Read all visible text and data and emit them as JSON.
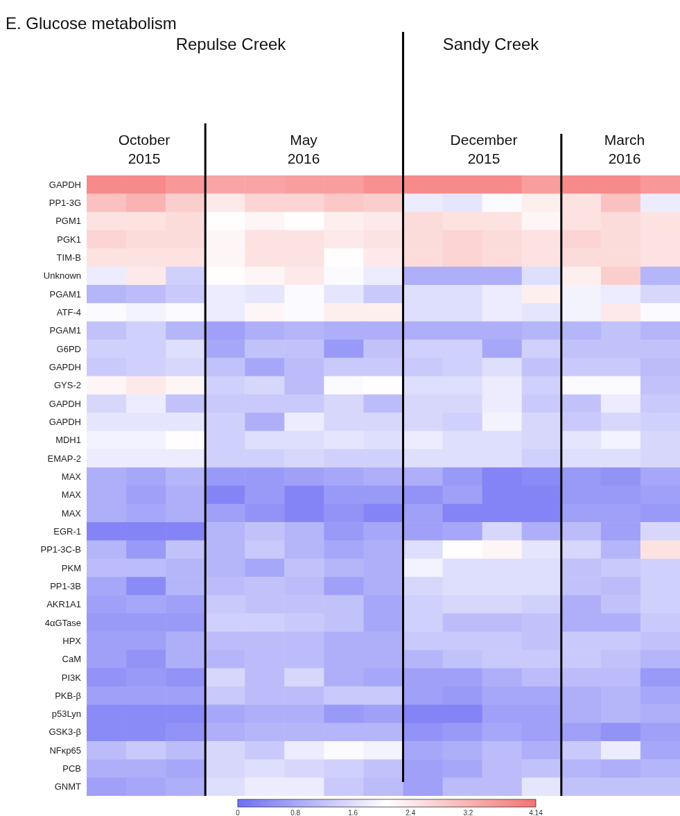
{
  "chart_data": {
    "type": "heatmap",
    "title": "E. Glucose metabolism",
    "annotations": [
      "Repulse Creek",
      "Sandy Creek",
      "October 2015",
      "May 2016",
      "December 2015",
      "March 2016"
    ],
    "categories": [
      null,
      null,
      null,
      null,
      null,
      null,
      null,
      null,
      null,
      null,
      null,
      null,
      null,
      null,
      null
    ],
    "y_categories": [
      "GAPDH",
      "PP1-3G",
      "PGM1",
      "PGK1",
      "TIM-B",
      "Unknown",
      "PGAM1",
      "ATF-4",
      "PGAM1",
      "G6PD",
      "GAPDH",
      "GYS-2",
      "GAPDH",
      "GAPDH",
      "MDH1",
      "EMAP-2",
      "MAX",
      "MAX",
      "MAX",
      "EGR-1",
      "PP1-3C-B",
      "PKM",
      "PP1-3B",
      "AKR1A1",
      "4αGTase",
      "HPX",
      "CaM",
      "PI3K",
      "PKB-β",
      "p53Lyn",
      "GSK3-β",
      "NFκp65",
      "PCB",
      "GNMT"
    ],
    "cells": [
      [
        3.8,
        3.8,
        3.6,
        3.4,
        3.4,
        3.5,
        3.5,
        3.7,
        3.8,
        3.8,
        3.8,
        3.5,
        3.8,
        3.8,
        3.6
      ],
      [
        3.0,
        3.2,
        2.8,
        2.4,
        2.7,
        2.7,
        2.9,
        2.8,
        1.8,
        1.7,
        2.0,
        2.3,
        2.5,
        3.0,
        1.8
      ],
      [
        2.5,
        2.5,
        2.6,
        2.1,
        2.2,
        2.1,
        2.3,
        2.4,
        2.6,
        2.5,
        2.5,
        2.2,
        2.5,
        2.6,
        2.5
      ],
      [
        2.7,
        2.6,
        2.6,
        2.2,
        2.5,
        2.5,
        2.4,
        2.5,
        2.6,
        2.7,
        2.6,
        2.5,
        2.7,
        2.6,
        2.5
      ],
      [
        2.5,
        2.5,
        2.5,
        2.2,
        2.5,
        2.5,
        2.1,
        2.4,
        2.6,
        2.7,
        2.6,
        2.5,
        2.6,
        2.6,
        2.5
      ],
      [
        1.8,
        2.4,
        1.4,
        2.1,
        2.2,
        2.4,
        2.0,
        1.8,
        0.9,
        0.9,
        0.9,
        1.6,
        2.3,
        2.8,
        1.0
      ],
      [
        1.0,
        1.1,
        1.3,
        1.8,
        1.7,
        2.0,
        1.7,
        1.3,
        1.6,
        1.6,
        1.8,
        2.3,
        1.9,
        1.8,
        1.5
      ],
      [
        2.0,
        1.9,
        2.0,
        1.8,
        2.2,
        2.0,
        2.3,
        2.3,
        1.6,
        1.6,
        1.8,
        1.7,
        1.9,
        2.4,
        2.0
      ],
      [
        1.2,
        1.4,
        1.0,
        0.7,
        0.9,
        1.0,
        0.9,
        0.9,
        0.9,
        0.9,
        0.9,
        1.0,
        1.0,
        1.2,
        1.0
      ],
      [
        1.4,
        1.4,
        1.6,
        0.8,
        1.2,
        1.2,
        0.6,
        1.2,
        1.4,
        1.4,
        0.8,
        1.4,
        1.2,
        1.2,
        1.2
      ],
      [
        1.3,
        1.4,
        1.5,
        1.2,
        0.8,
        1.1,
        1.3,
        1.3,
        1.3,
        1.4,
        1.6,
        1.2,
        1.3,
        1.3,
        1.1
      ],
      [
        2.2,
        2.4,
        2.2,
        1.4,
        1.5,
        1.1,
        2.0,
        2.1,
        1.6,
        1.6,
        1.8,
        1.4,
        2.0,
        2.0,
        1.2
      ],
      [
        1.5,
        1.8,
        1.2,
        1.3,
        1.3,
        1.3,
        1.5,
        1.1,
        1.5,
        1.5,
        1.8,
        1.3,
        1.2,
        1.8,
        1.3
      ],
      [
        1.7,
        1.7,
        1.7,
        1.4,
        0.9,
        1.8,
        1.5,
        1.5,
        1.5,
        1.4,
        1.9,
        1.5,
        1.3,
        1.5,
        1.4
      ],
      [
        1.9,
        1.9,
        2.1,
        1.4,
        1.6,
        1.6,
        1.7,
        1.6,
        1.8,
        1.6,
        1.6,
        1.5,
        1.7,
        1.9,
        1.5
      ],
      [
        1.8,
        1.8,
        1.8,
        1.4,
        1.4,
        1.5,
        1.4,
        1.4,
        1.6,
        1.6,
        1.6,
        1.4,
        1.6,
        1.6,
        1.5
      ],
      [
        0.9,
        0.8,
        1.0,
        0.6,
        0.6,
        0.7,
        0.8,
        0.9,
        0.9,
        0.6,
        0.3,
        0.4,
        0.6,
        0.5,
        0.8
      ],
      [
        0.9,
        0.7,
        0.9,
        0.3,
        0.6,
        0.3,
        0.6,
        0.6,
        0.5,
        0.7,
        0.3,
        0.3,
        0.6,
        0.6,
        0.7
      ],
      [
        0.9,
        0.8,
        0.9,
        0.7,
        0.5,
        0.3,
        0.5,
        0.3,
        0.7,
        0.3,
        0.3,
        0.3,
        0.7,
        0.7,
        0.6
      ],
      [
        0.3,
        0.3,
        0.3,
        1.0,
        1.2,
        1.0,
        0.6,
        0.8,
        0.7,
        0.8,
        1.5,
        0.9,
        1.1,
        0.7,
        1.5
      ],
      [
        1.0,
        0.6,
        1.2,
        1.0,
        1.3,
        1.0,
        0.8,
        0.9,
        1.6,
        2.1,
        2.2,
        1.7,
        1.5,
        1.0,
        2.5
      ],
      [
        1.1,
        1.1,
        1.0,
        1.0,
        0.8,
        1.2,
        1.0,
        0.9,
        1.9,
        1.6,
        1.6,
        1.6,
        1.2,
        1.3,
        1.4
      ],
      [
        0.8,
        0.4,
        1.0,
        1.1,
        1.2,
        1.1,
        0.7,
        0.9,
        1.5,
        1.6,
        1.6,
        1.6,
        1.2,
        1.1,
        1.4
      ],
      [
        0.7,
        0.8,
        0.7,
        1.3,
        1.2,
        1.2,
        1.2,
        0.8,
        1.4,
        1.5,
        1.5,
        1.4,
        0.9,
        1.2,
        1.4
      ],
      [
        0.6,
        0.6,
        0.6,
        1.4,
        1.4,
        1.3,
        1.2,
        0.8,
        1.4,
        1.1,
        1.1,
        1.2,
        0.9,
        0.9,
        1.3
      ],
      [
        0.7,
        0.7,
        0.9,
        1.1,
        1.1,
        1.1,
        0.9,
        0.9,
        1.3,
        1.3,
        1.3,
        1.2,
        1.3,
        1.3,
        1.2
      ],
      [
        0.7,
        0.5,
        0.9,
        1.0,
        1.1,
        1.1,
        0.9,
        0.9,
        1.0,
        1.2,
        1.3,
        1.3,
        1.3,
        1.2,
        1.0
      ],
      [
        0.5,
        0.6,
        0.5,
        1.5,
        1.1,
        1.5,
        0.9,
        0.8,
        0.7,
        0.7,
        0.9,
        1.1,
        1.1,
        1.1,
        0.6
      ],
      [
        0.7,
        0.7,
        0.7,
        1.3,
        1.1,
        1.1,
        1.3,
        1.3,
        0.7,
        0.6,
        0.8,
        0.8,
        0.9,
        1.0,
        0.8
      ],
      [
        0.4,
        0.4,
        0.4,
        0.8,
        0.9,
        0.9,
        0.6,
        0.7,
        0.3,
        0.3,
        0.7,
        0.7,
        0.9,
        1.0,
        0.9
      ],
      [
        0.4,
        0.4,
        0.5,
        0.9,
        1.0,
        1.0,
        1.0,
        1.0,
        0.5,
        0.6,
        0.8,
        0.7,
        0.7,
        0.5,
        0.7
      ],
      [
        1.1,
        1.3,
        1.1,
        1.5,
        1.3,
        1.8,
        2.0,
        1.9,
        0.8,
        0.9,
        1.1,
        0.9,
        1.3,
        1.8,
        0.8
      ],
      [
        0.9,
        0.9,
        0.8,
        1.5,
        1.6,
        1.5,
        1.4,
        1.2,
        0.7,
        0.8,
        1.1,
        1.2,
        1.0,
        0.9,
        1.0
      ],
      [
        0.7,
        0.8,
        0.9,
        1.6,
        1.8,
        1.8,
        1.3,
        1.1,
        0.7,
        1.1,
        1.1,
        1.7,
        1.2,
        1.2,
        1.2
      ]
    ],
    "clim": [
      0,
      4.14
    ],
    "cticks": [
      0,
      0.8,
      1.6,
      2.4,
      3.2,
      4.14
    ]
  }
}
